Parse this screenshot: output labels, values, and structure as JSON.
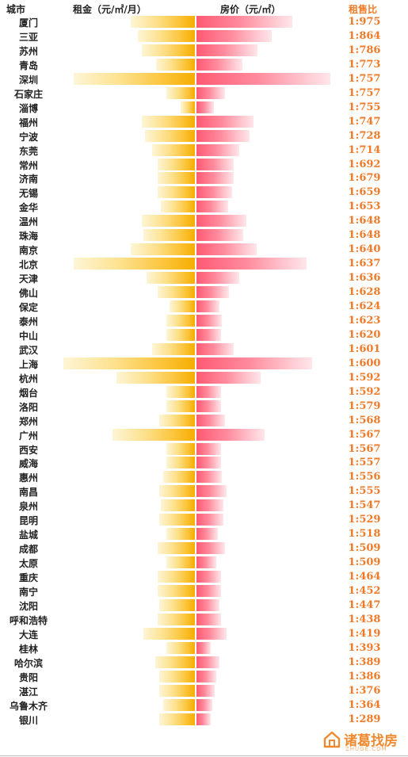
{
  "chart_data": {
    "type": "bar",
    "headers": {
      "city": "城市",
      "rent": "租金（元/㎡/月）",
      "price": "房价（元/㎡）",
      "ratio": "租售比"
    },
    "categories": [
      "厦门",
      "三亚",
      "苏州",
      "青岛",
      "深圳",
      "石家庄",
      "淄博",
      "福州",
      "宁波",
      "东莞",
      "常州",
      "济南",
      "无锡",
      "金华",
      "温州",
      "珠海",
      "南京",
      "北京",
      "天津",
      "佛山",
      "保定",
      "泰州",
      "中山",
      "武汉",
      "上海",
      "杭州",
      "烟台",
      "洛阳",
      "郑州",
      "广州",
      "西安",
      "威海",
      "惠州",
      "南昌",
      "泉州",
      "昆明",
      "盐城",
      "成都",
      "太原",
      "重庆",
      "南宁",
      "沈阳",
      "呼和浩特",
      "大连",
      "桂林",
      "哈尔滨",
      "贵阳",
      "湛江",
      "乌鲁木齐",
      "银川"
    ],
    "series": [
      {
        "name": "租金（元/㎡/月）",
        "values": [
          45,
          40,
          37,
          27,
          85,
          20,
          10,
          37,
          35,
          30,
          26,
          26,
          26,
          24,
          37,
          36,
          45,
          85,
          34,
          26,
          18,
          20,
          20,
          30,
          92,
          55,
          20,
          20,
          25,
          58,
          20,
          20,
          22,
          25,
          24,
          25,
          20,
          26,
          20,
          26,
          26,
          25,
          26,
          36,
          20,
          28,
          25,
          25,
          22,
          25
        ]
      },
      {
        "name": "房价（元/㎡）",
        "values": [
          67,
          53,
          43,
          32,
          94,
          20,
          12,
          40,
          37,
          30,
          26,
          26,
          25,
          22,
          35,
          33,
          42,
          77,
          30,
          23,
          16,
          18,
          17,
          26,
          81,
          45,
          17,
          17,
          20,
          48,
          17,
          17,
          18,
          21,
          19,
          19,
          15,
          20,
          14,
          17,
          17,
          16,
          17,
          21,
          10,
          16,
          14,
          13,
          11,
          10
        ]
      },
      {
        "name": "租售比",
        "values": [
          "1:975",
          "1:864",
          "1:786",
          "1:773",
          "1:757",
          "1:757",
          "1:755",
          "1:747",
          "1:728",
          "1:714",
          "1:692",
          "1:679",
          "1:659",
          "1:653",
          "1:648",
          "1:648",
          "1:640",
          "1:637",
          "1:636",
          "1:628",
          "1:624",
          "1:623",
          "1:620",
          "1:601",
          "1:600",
          "1:592",
          "1:592",
          "1:579",
          "1:568",
          "1:567",
          "1:567",
          "1:557",
          "1:556",
          "1:555",
          "1:547",
          "1:529",
          "1:518",
          "1:509",
          "1:509",
          "1:464",
          "1:452",
          "1:447",
          "1:438",
          "1:419",
          "1:393",
          "1:389",
          "1:386",
          "1:376",
          "1:364",
          "1:289"
        ]
      }
    ]
  },
  "logo": {
    "text": "诸葛找房",
    "sub": "ZHUGE.COM",
    "icon": "house-icon",
    "color": "#f08a30"
  },
  "colors": {
    "rent_bar": "#f5ad00",
    "price_bar": "#ff5a73",
    "ratio_text": "#f07a28"
  }
}
